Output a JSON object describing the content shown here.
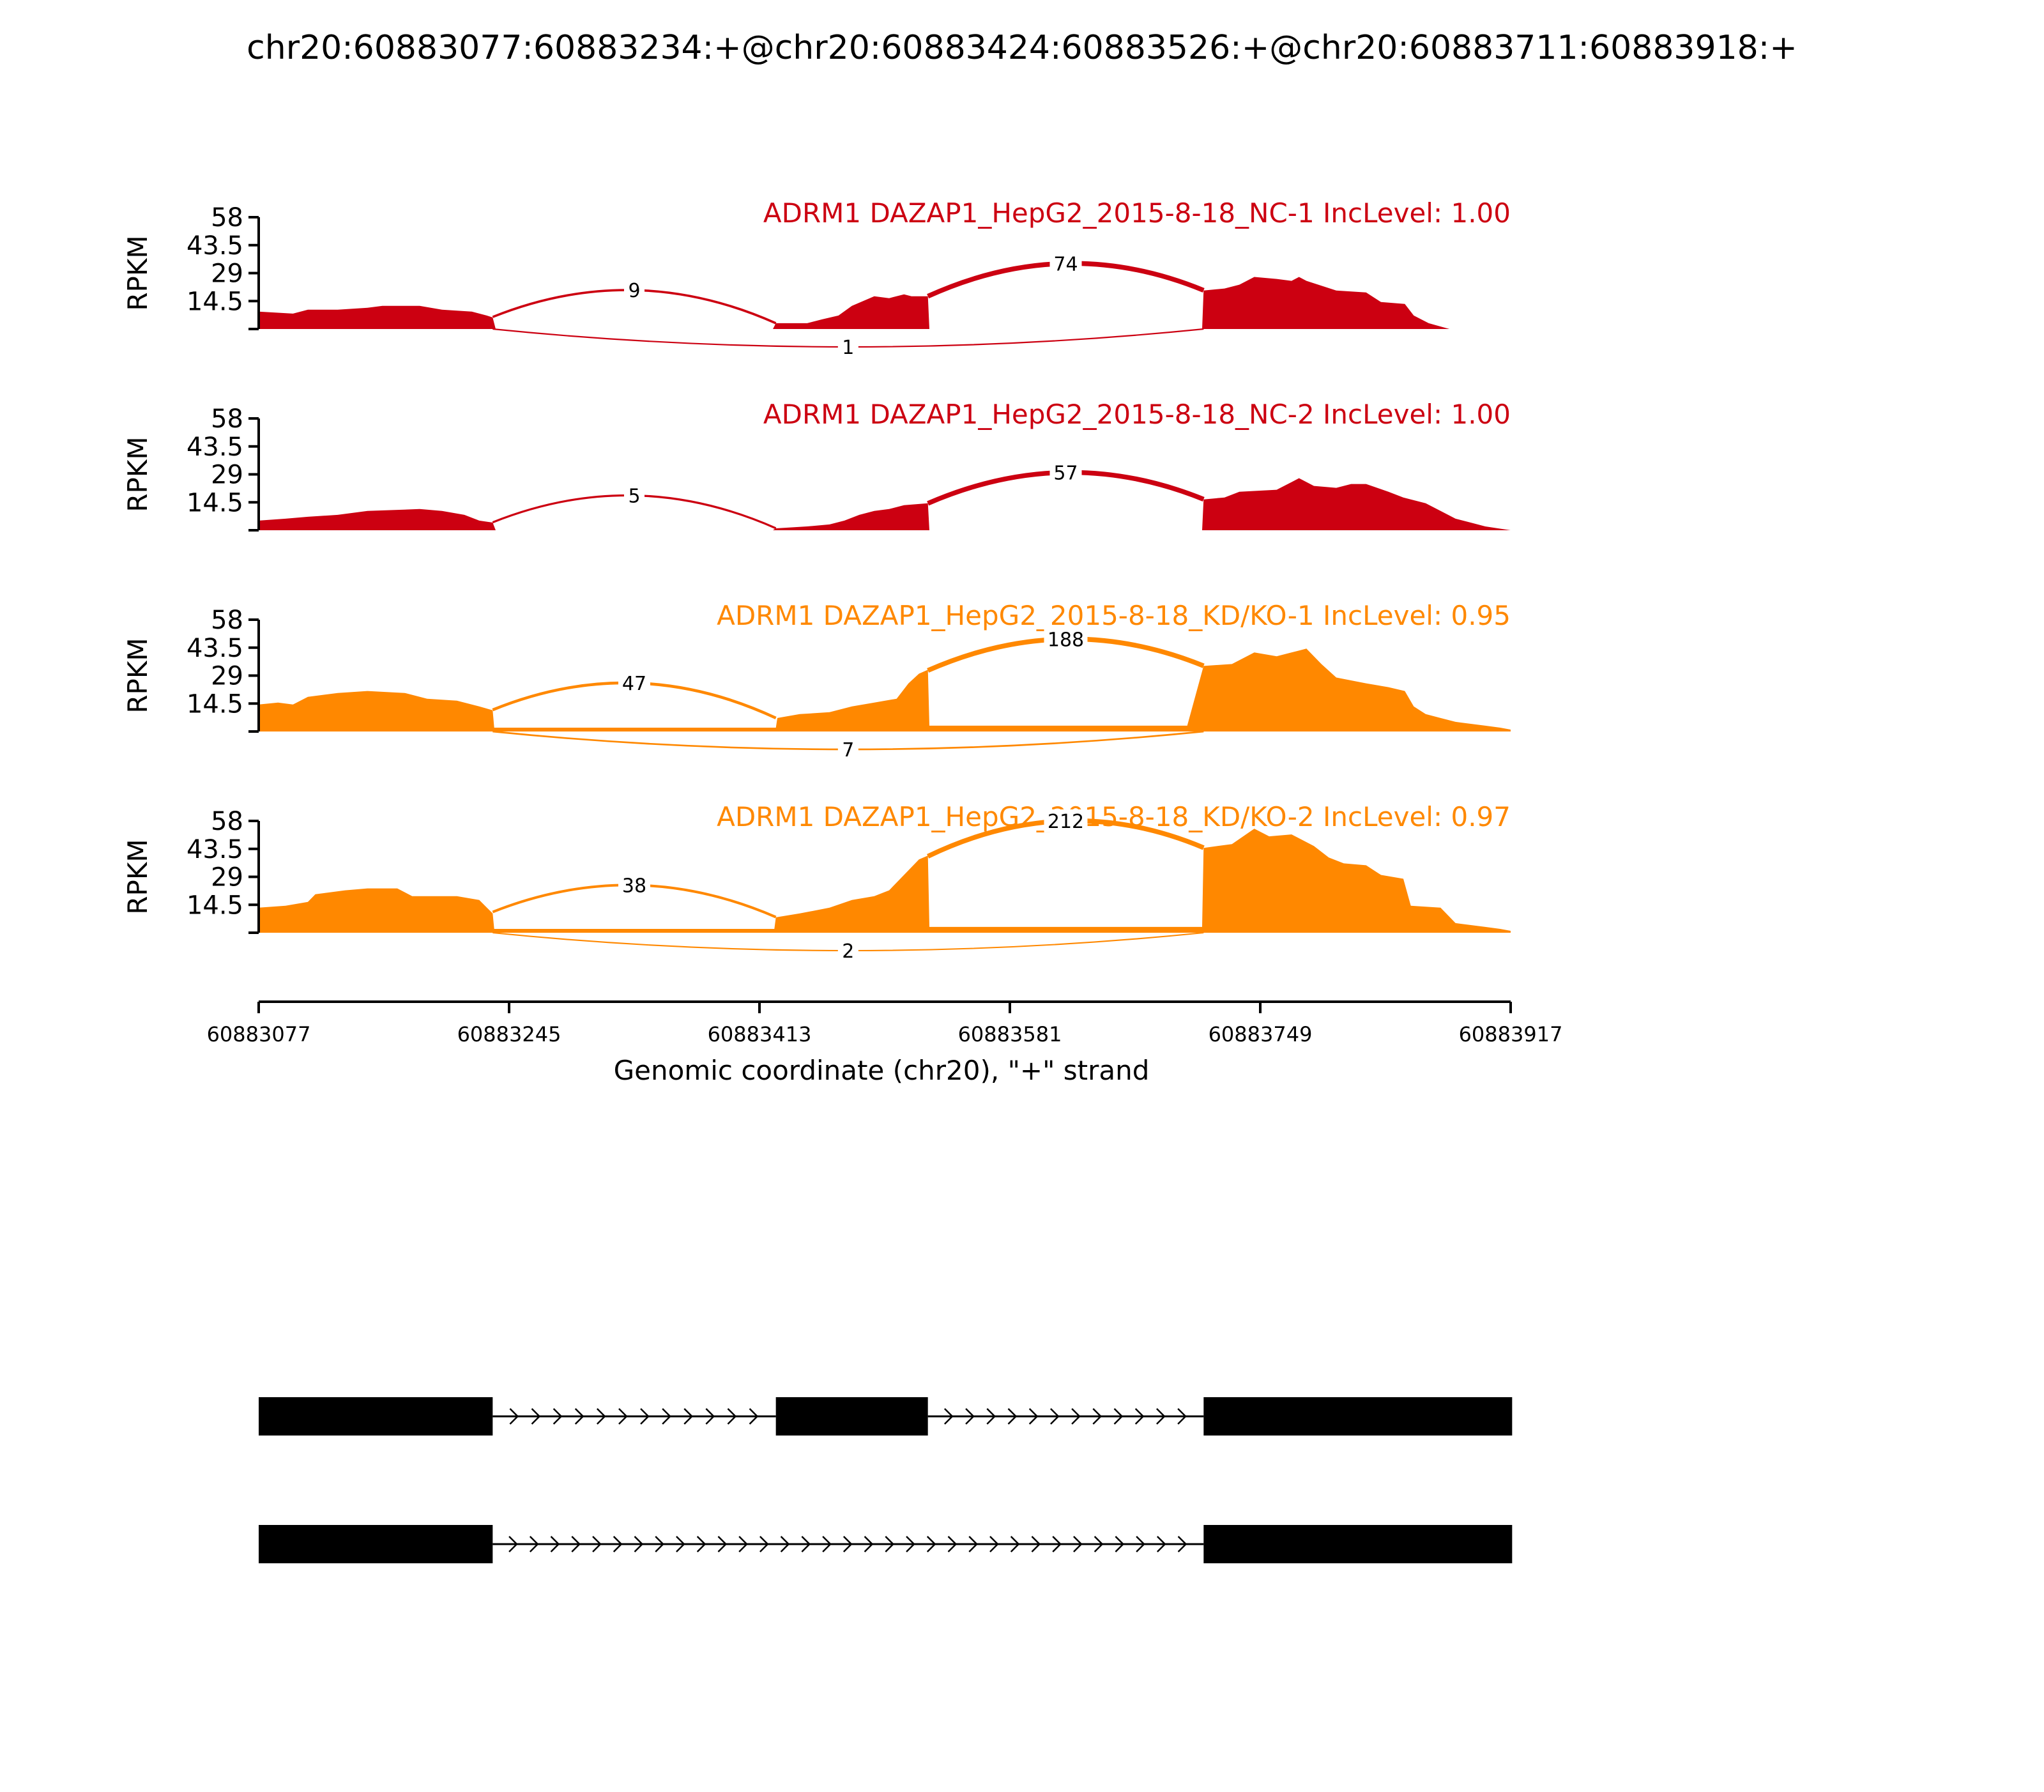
{
  "chart_data": {
    "type": "area",
    "title": "chr20:60883077:60883234:+@chr20:60883424:60883526:+@chr20:60883711:60883918:+",
    "ylabel": "RPKM",
    "xlabel": "Genomic coordinate (chr20), \"+\" strand",
    "xlim": [
      60883077,
      60883917
    ],
    "x_ticks": [
      "60883077",
      "60883245",
      "60883413",
      "60883581",
      "60883749",
      "60883917"
    ],
    "ylim": [
      0,
      58
    ],
    "y_ticks": [
      "58",
      "43.5",
      "29",
      "14.5"
    ],
    "colors": {
      "nc": "#CC0011",
      "kd": "#FF8800",
      "axis": "#000000",
      "exon": "#000000"
    },
    "exons": [
      [
        60883077,
        60883234
      ],
      [
        60883424,
        60883526
      ],
      [
        60883711,
        60883918
      ]
    ],
    "series": [
      {
        "name": "ADRM1 DAZAP1_HepG2_2015-8-18_NC-1 IncLevel: 1.00",
        "color_key": "nc",
        "coverage": [
          [
            60883077,
            9
          ],
          [
            60883100,
            8
          ],
          [
            60883110,
            10
          ],
          [
            60883130,
            10
          ],
          [
            60883150,
            11
          ],
          [
            60883160,
            12
          ],
          [
            60883185,
            12
          ],
          [
            60883200,
            10
          ],
          [
            60883220,
            9
          ],
          [
            60883230,
            7
          ],
          [
            60883234,
            6
          ],
          [
            60883236,
            0
          ],
          [
            60883300,
            0
          ],
          [
            60883422,
            0
          ],
          [
            60883424,
            3
          ],
          [
            60883445,
            3
          ],
          [
            60883455,
            5
          ],
          [
            60883466,
            7
          ],
          [
            60883475,
            12
          ],
          [
            60883490,
            17
          ],
          [
            60883500,
            16
          ],
          [
            60883510,
            18
          ],
          [
            60883515,
            17
          ],
          [
            60883526,
            17
          ],
          [
            60883527,
            0
          ],
          [
            60883710,
            0
          ],
          [
            60883711,
            20
          ],
          [
            60883725,
            21
          ],
          [
            60883735,
            23
          ],
          [
            60883745,
            27
          ],
          [
            60883760,
            26
          ],
          [
            60883770,
            25
          ],
          [
            60883775,
            27
          ],
          [
            60883780,
            25
          ],
          [
            60883800,
            20
          ],
          [
            60883820,
            19
          ],
          [
            60883830,
            14
          ],
          [
            60883846,
            13
          ],
          [
            60883852,
            7
          ],
          [
            60883862,
            3
          ],
          [
            60883876,
            0
          ],
          [
            60883917,
            0
          ]
        ],
        "junctions": [
          {
            "from": 60883234,
            "to": 60883424,
            "count": "9",
            "side": "above"
          },
          {
            "from": 60883526,
            "to": 60883711,
            "count": "74",
            "side": "above"
          },
          {
            "from": 60883234,
            "to": 60883711,
            "count": "1",
            "side": "below"
          }
        ]
      },
      {
        "name": "ADRM1 DAZAP1_HepG2_2015-8-18_NC-2 IncLevel: 1.00",
        "color_key": "nc",
        "coverage": [
          [
            60883077,
            5
          ],
          [
            60883095,
            6
          ],
          [
            60883110,
            7
          ],
          [
            60883130,
            8
          ],
          [
            60883150,
            10
          ],
          [
            60883185,
            11
          ],
          [
            60883200,
            10
          ],
          [
            60883215,
            8
          ],
          [
            60883225,
            5
          ],
          [
            60883234,
            4
          ],
          [
            60883236,
            0
          ],
          [
            60883300,
            0
          ],
          [
            60883422,
            0
          ],
          [
            60883424,
            1
          ],
          [
            60883445,
            2
          ],
          [
            60883460,
            3
          ],
          [
            60883470,
            5
          ],
          [
            60883480,
            8
          ],
          [
            60883490,
            10
          ],
          [
            60883500,
            11
          ],
          [
            60883510,
            13
          ],
          [
            60883526,
            14
          ],
          [
            60883527,
            0
          ],
          [
            60883710,
            0
          ],
          [
            60883711,
            16
          ],
          [
            60883725,
            17
          ],
          [
            60883735,
            20
          ],
          [
            60883760,
            21
          ],
          [
            60883770,
            25
          ],
          [
            60883775,
            27
          ],
          [
            60883785,
            23
          ],
          [
            60883800,
            22
          ],
          [
            60883810,
            24
          ],
          [
            60883820,
            24
          ],
          [
            60883835,
            20
          ],
          [
            60883845,
            17
          ],
          [
            60883860,
            14
          ],
          [
            60883870,
            10
          ],
          [
            60883880,
            6
          ],
          [
            60883890,
            4
          ],
          [
            60883900,
            2
          ],
          [
            60883917,
            0
          ]
        ],
        "junctions": [
          {
            "from": 60883234,
            "to": 60883424,
            "count": "5",
            "side": "above"
          },
          {
            "from": 60883526,
            "to": 60883711,
            "count": "57",
            "side": "above"
          }
        ]
      },
      {
        "name": "ADRM1 DAZAP1_HepG2_2015-8-18_KD/KO-1 IncLevel: 0.95",
        "color_key": "kd",
        "coverage": [
          [
            60883077,
            14
          ],
          [
            60883090,
            15
          ],
          [
            60883100,
            14
          ],
          [
            60883110,
            18
          ],
          [
            60883130,
            20
          ],
          [
            60883150,
            21
          ],
          [
            60883175,
            20
          ],
          [
            60883190,
            17
          ],
          [
            60883210,
            16
          ],
          [
            60883225,
            13
          ],
          [
            60883234,
            11
          ],
          [
            60883235,
            2
          ],
          [
            60883424,
            2
          ],
          [
            60883425,
            7
          ],
          [
            60883440,
            9
          ],
          [
            60883460,
            10
          ],
          [
            60883475,
            13
          ],
          [
            60883490,
            15
          ],
          [
            60883505,
            17
          ],
          [
            60883513,
            25
          ],
          [
            60883520,
            30
          ],
          [
            60883526,
            32
          ],
          [
            60883527,
            3
          ],
          [
            60883700,
            3
          ],
          [
            60883711,
            34
          ],
          [
            60883730,
            35
          ],
          [
            60883745,
            41
          ],
          [
            60883760,
            39
          ],
          [
            60883770,
            41
          ],
          [
            60883780,
            43
          ],
          [
            60883790,
            35
          ],
          [
            60883800,
            28
          ],
          [
            60883820,
            25
          ],
          [
            60883835,
            23
          ],
          [
            60883846,
            21
          ],
          [
            60883852,
            13
          ],
          [
            60883860,
            9
          ],
          [
            60883870,
            7
          ],
          [
            60883880,
            5
          ],
          [
            60883900,
            3
          ],
          [
            60883910,
            2
          ],
          [
            60883917,
            1
          ]
        ],
        "junctions": [
          {
            "from": 60883234,
            "to": 60883424,
            "count": "47",
            "side": "above"
          },
          {
            "from": 60883526,
            "to": 60883711,
            "count": "188",
            "side": "above"
          },
          {
            "from": 60883234,
            "to": 60883711,
            "count": "7",
            "side": "below"
          }
        ]
      },
      {
        "name": "ADRM1 DAZAP1_HepG2_2015-8-18_KD/KO-2 IncLevel: 0.97",
        "color_key": "kd",
        "coverage": [
          [
            60883077,
            13
          ],
          [
            60883095,
            14
          ],
          [
            60883110,
            16
          ],
          [
            60883115,
            20
          ],
          [
            60883135,
            22
          ],
          [
            60883150,
            23
          ],
          [
            60883170,
            23
          ],
          [
            60883180,
            19
          ],
          [
            60883210,
            19
          ],
          [
            60883225,
            17
          ],
          [
            60883234,
            10
          ],
          [
            60883235,
            2
          ],
          [
            60883423,
            2
          ],
          [
            60883424,
            8
          ],
          [
            60883440,
            10
          ],
          [
            60883460,
            13
          ],
          [
            60883475,
            17
          ],
          [
            60883490,
            19
          ],
          [
            60883500,
            22
          ],
          [
            60883510,
            30
          ],
          [
            60883520,
            38
          ],
          [
            60883526,
            40
          ],
          [
            60883527,
            3
          ],
          [
            60883710,
            3
          ],
          [
            60883711,
            44
          ],
          [
            60883730,
            46
          ],
          [
            60883745,
            54
          ],
          [
            60883755,
            50
          ],
          [
            60883770,
            51
          ],
          [
            60883785,
            45
          ],
          [
            60883795,
            39
          ],
          [
            60883805,
            36
          ],
          [
            60883820,
            35
          ],
          [
            60883830,
            30
          ],
          [
            60883845,
            28
          ],
          [
            60883850,
            14
          ],
          [
            60883870,
            13
          ],
          [
            60883880,
            5
          ],
          [
            60883900,
            3
          ],
          [
            60883910,
            2
          ],
          [
            60883917,
            1
          ]
        ],
        "junctions": [
          {
            "from": 60883234,
            "to": 60883424,
            "count": "38",
            "side": "above"
          },
          {
            "from": 60883526,
            "to": 60883711,
            "count": "212",
            "side": "above"
          },
          {
            "from": 60883234,
            "to": 60883711,
            "count": "2",
            "side": "below"
          }
        ]
      }
    ],
    "isoforms": [
      {
        "exons": [
          0,
          1,
          2
        ]
      },
      {
        "exons": [
          0,
          2
        ]
      }
    ]
  }
}
